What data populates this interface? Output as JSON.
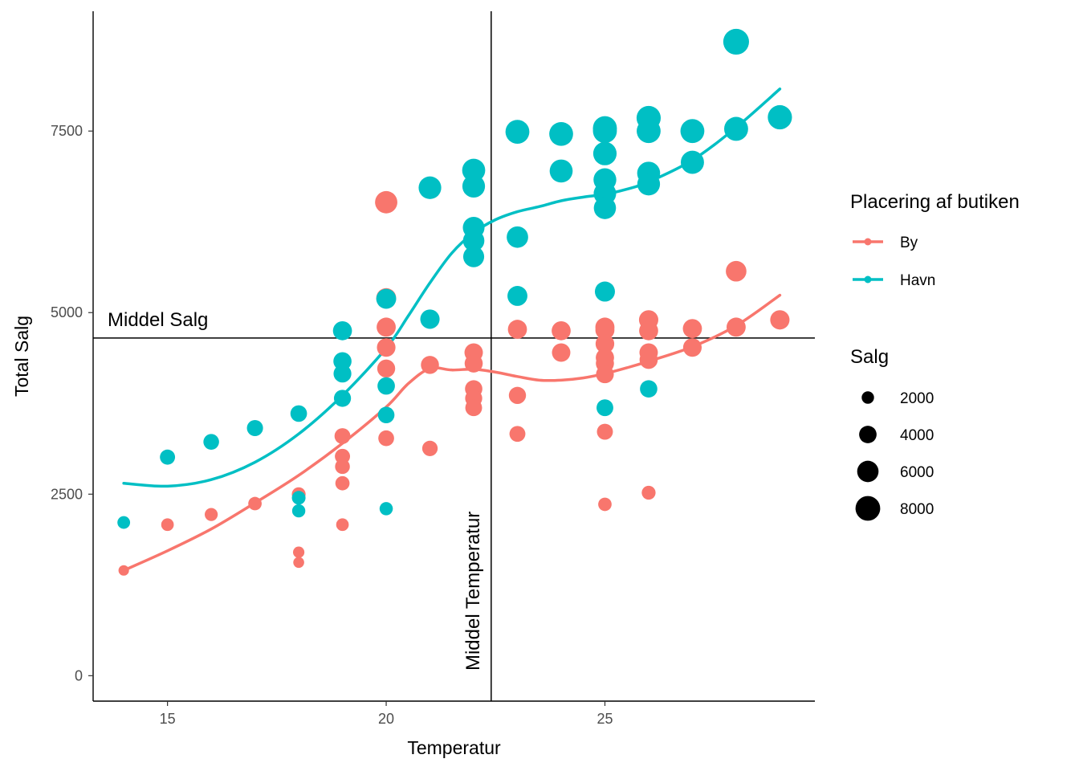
{
  "chart_data": {
    "type": "scatter",
    "xlabel": "Temperatur",
    "ylabel": "Total Salg",
    "xlim": [
      13.3,
      29.8
    ],
    "ylim": [
      -350,
      9150
    ],
    "x_ticks": [
      15,
      20,
      25
    ],
    "y_ticks": [
      0,
      2500,
      5000,
      7500
    ],
    "grid": false,
    "legend_placement": "right",
    "reference_lines": {
      "mean_x": 22.4,
      "mean_y": 4650,
      "mean_x_label": "Middel Temperatur",
      "mean_y_label": "Middel Salg"
    },
    "color_legend": {
      "title": "Placering af butiken",
      "entries": [
        {
          "label": "By",
          "color": "#F8766D"
        },
        {
          "label": "Havn",
          "color": "#00BFC4"
        }
      ]
    },
    "size_legend": {
      "title": "Salg",
      "entries": [
        {
          "label": "2000",
          "value": 2000
        },
        {
          "label": "4000",
          "value": 4000
        },
        {
          "label": "6000",
          "value": 6000
        },
        {
          "label": "8000",
          "value": 8000
        }
      ]
    },
    "series": [
      {
        "name": "By",
        "color": "#F8766D",
        "points": [
          {
            "x": 14,
            "y": 1450
          },
          {
            "x": 15,
            "y": 2080
          },
          {
            "x": 16,
            "y": 2220
          },
          {
            "x": 17,
            "y": 2370
          },
          {
            "x": 18,
            "y": 2500
          },
          {
            "x": 18,
            "y": 1700
          },
          {
            "x": 18,
            "y": 1560
          },
          {
            "x": 19,
            "y": 3300
          },
          {
            "x": 19,
            "y": 3020
          },
          {
            "x": 19,
            "y": 2880
          },
          {
            "x": 19,
            "y": 2650
          },
          {
            "x": 19,
            "y": 2080
          },
          {
            "x": 20,
            "y": 6520
          },
          {
            "x": 20,
            "y": 5200
          },
          {
            "x": 20,
            "y": 4800
          },
          {
            "x": 20,
            "y": 4520
          },
          {
            "x": 20,
            "y": 4230
          },
          {
            "x": 20,
            "y": 3270
          },
          {
            "x": 21,
            "y": 4280
          },
          {
            "x": 21,
            "y": 3130
          },
          {
            "x": 22,
            "y": 4450
          },
          {
            "x": 22,
            "y": 4300
          },
          {
            "x": 22,
            "y": 3950
          },
          {
            "x": 22,
            "y": 3820
          },
          {
            "x": 22,
            "y": 3690
          },
          {
            "x": 23,
            "y": 4770
          },
          {
            "x": 23,
            "y": 3860
          },
          {
            "x": 23,
            "y": 3330
          },
          {
            "x": 24,
            "y": 4750
          },
          {
            "x": 24,
            "y": 4450
          },
          {
            "x": 25,
            "y": 4800
          },
          {
            "x": 25,
            "y": 4760
          },
          {
            "x": 25,
            "y": 4570
          },
          {
            "x": 25,
            "y": 4380
          },
          {
            "x": 25,
            "y": 4300
          },
          {
            "x": 25,
            "y": 4150
          },
          {
            "x": 25,
            "y": 3360
          },
          {
            "x": 25,
            "y": 2360
          },
          {
            "x": 26,
            "y": 4900
          },
          {
            "x": 26,
            "y": 4750
          },
          {
            "x": 26,
            "y": 4450
          },
          {
            "x": 26,
            "y": 4350
          },
          {
            "x": 26,
            "y": 2520
          },
          {
            "x": 27,
            "y": 4780
          },
          {
            "x": 27,
            "y": 4520
          },
          {
            "x": 28,
            "y": 5570
          },
          {
            "x": 28,
            "y": 4800
          },
          {
            "x": 29,
            "y": 4900
          }
        ],
        "smooth": [
          {
            "x": 14,
            "y": 1450
          },
          {
            "x": 15,
            "y": 1720
          },
          {
            "x": 16,
            "y": 2020
          },
          {
            "x": 17,
            "y": 2380
          },
          {
            "x": 18,
            "y": 2760
          },
          {
            "x": 19,
            "y": 3200
          },
          {
            "x": 20,
            "y": 3700
          },
          {
            "x": 20.5,
            "y": 4020
          },
          {
            "x": 21,
            "y": 4230
          },
          {
            "x": 21.5,
            "y": 4210
          },
          {
            "x": 22,
            "y": 4220
          },
          {
            "x": 22.5,
            "y": 4180
          },
          {
            "x": 23,
            "y": 4120
          },
          {
            "x": 23.5,
            "y": 4070
          },
          {
            "x": 24,
            "y": 4070
          },
          {
            "x": 24.5,
            "y": 4100
          },
          {
            "x": 25,
            "y": 4160
          },
          {
            "x": 25.5,
            "y": 4240
          },
          {
            "x": 26,
            "y": 4330
          },
          {
            "x": 27,
            "y": 4530
          },
          {
            "x": 28,
            "y": 4820
          },
          {
            "x": 29,
            "y": 5240
          }
        ]
      },
      {
        "name": "Havn",
        "color": "#00BFC4",
        "points": [
          {
            "x": 14,
            "y": 2110
          },
          {
            "x": 15,
            "y": 3010
          },
          {
            "x": 16,
            "y": 3220
          },
          {
            "x": 17,
            "y": 3410
          },
          {
            "x": 18,
            "y": 3610
          },
          {
            "x": 18,
            "y": 2450
          },
          {
            "x": 18,
            "y": 2270
          },
          {
            "x": 19,
            "y": 4750
          },
          {
            "x": 19,
            "y": 4330
          },
          {
            "x": 19,
            "y": 4160
          },
          {
            "x": 19,
            "y": 3820
          },
          {
            "x": 20,
            "y": 5190
          },
          {
            "x": 20,
            "y": 3990
          },
          {
            "x": 20,
            "y": 3590
          },
          {
            "x": 20,
            "y": 2300
          },
          {
            "x": 21,
            "y": 6720
          },
          {
            "x": 21,
            "y": 4910
          },
          {
            "x": 22,
            "y": 6960
          },
          {
            "x": 22,
            "y": 6740
          },
          {
            "x": 22,
            "y": 6170
          },
          {
            "x": 22,
            "y": 5990
          },
          {
            "x": 22,
            "y": 5770
          },
          {
            "x": 23,
            "y": 7490
          },
          {
            "x": 23,
            "y": 6040
          },
          {
            "x": 23,
            "y": 5230
          },
          {
            "x": 24,
            "y": 7460
          },
          {
            "x": 24,
            "y": 6950
          },
          {
            "x": 25,
            "y": 7540
          },
          {
            "x": 25,
            "y": 7500
          },
          {
            "x": 25,
            "y": 7190
          },
          {
            "x": 25,
            "y": 6830
          },
          {
            "x": 25,
            "y": 6640
          },
          {
            "x": 25,
            "y": 6440
          },
          {
            "x": 25,
            "y": 5290
          },
          {
            "x": 25,
            "y": 3690
          },
          {
            "x": 26,
            "y": 7680
          },
          {
            "x": 26,
            "y": 7500
          },
          {
            "x": 26,
            "y": 6920
          },
          {
            "x": 26,
            "y": 6770
          },
          {
            "x": 26,
            "y": 3950
          },
          {
            "x": 27,
            "y": 7500
          },
          {
            "x": 27,
            "y": 7070
          },
          {
            "x": 28,
            "y": 8730
          },
          {
            "x": 28,
            "y": 7530
          },
          {
            "x": 29,
            "y": 7690
          }
        ],
        "smooth": [
          {
            "x": 14,
            "y": 2650
          },
          {
            "x": 15,
            "y": 2610
          },
          {
            "x": 16,
            "y": 2700
          },
          {
            "x": 17,
            "y": 2940
          },
          {
            "x": 18,
            "y": 3330
          },
          {
            "x": 19,
            "y": 3860
          },
          {
            "x": 20,
            "y": 4510
          },
          {
            "x": 20.5,
            "y": 4950
          },
          {
            "x": 21,
            "y": 5410
          },
          {
            "x": 21.5,
            "y": 5820
          },
          {
            "x": 22,
            "y": 6100
          },
          {
            "x": 22.5,
            "y": 6280
          },
          {
            "x": 23,
            "y": 6390
          },
          {
            "x": 23.5,
            "y": 6460
          },
          {
            "x": 24,
            "y": 6540
          },
          {
            "x": 24.5,
            "y": 6590
          },
          {
            "x": 25,
            "y": 6630
          },
          {
            "x": 25.5,
            "y": 6700
          },
          {
            "x": 26,
            "y": 6800
          },
          {
            "x": 27,
            "y": 7100
          },
          {
            "x": 28,
            "y": 7550
          },
          {
            "x": 29,
            "y": 8080
          }
        ]
      }
    ]
  }
}
